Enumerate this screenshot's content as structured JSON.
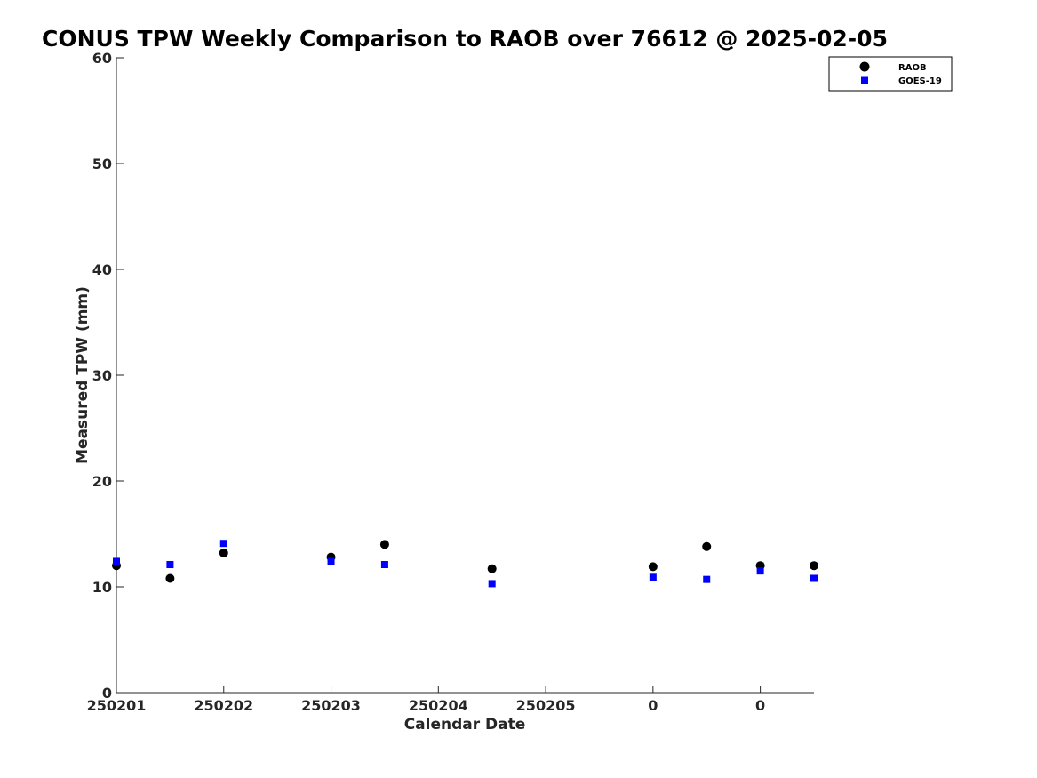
{
  "chart_data": {
    "type": "scatter",
    "title": "CONUS TPW Weekly Comparison to RAOB over 76612 @ 2025-02-05",
    "xlabel": "Calendar Date",
    "ylabel": "Measured TPW (mm)",
    "ylim": [
      0,
      60
    ],
    "yticks": [
      0,
      10,
      20,
      30,
      40,
      50,
      60
    ],
    "xlim": [
      0,
      13
    ],
    "xticks": [
      {
        "pos": 0,
        "label": "250201"
      },
      {
        "pos": 2,
        "label": "250202"
      },
      {
        "pos": 4,
        "label": "250203"
      },
      {
        "pos": 6,
        "label": "250204"
      },
      {
        "pos": 8,
        "label": "250205"
      },
      {
        "pos": 10,
        "label": "0"
      },
      {
        "pos": 12,
        "label": "0"
      }
    ],
    "legend_position": "top-right",
    "series": [
      {
        "name": "RAOB",
        "marker": "circle",
        "color": "#000000",
        "x": [
          0,
          1,
          2,
          4,
          5,
          7,
          10,
          11,
          12,
          13
        ],
        "y": [
          12.0,
          10.8,
          13.2,
          12.8,
          14.0,
          11.7,
          11.9,
          13.8,
          12.0,
          12.0
        ]
      },
      {
        "name": "GOES-19",
        "marker": "square",
        "color": "#0000ff",
        "x": [
          0,
          1,
          2,
          4,
          5,
          7,
          10,
          11,
          12,
          13
        ],
        "y": [
          12.4,
          12.1,
          14.1,
          12.4,
          12.1,
          10.3,
          10.9,
          10.7,
          11.5,
          10.8
        ]
      }
    ]
  }
}
